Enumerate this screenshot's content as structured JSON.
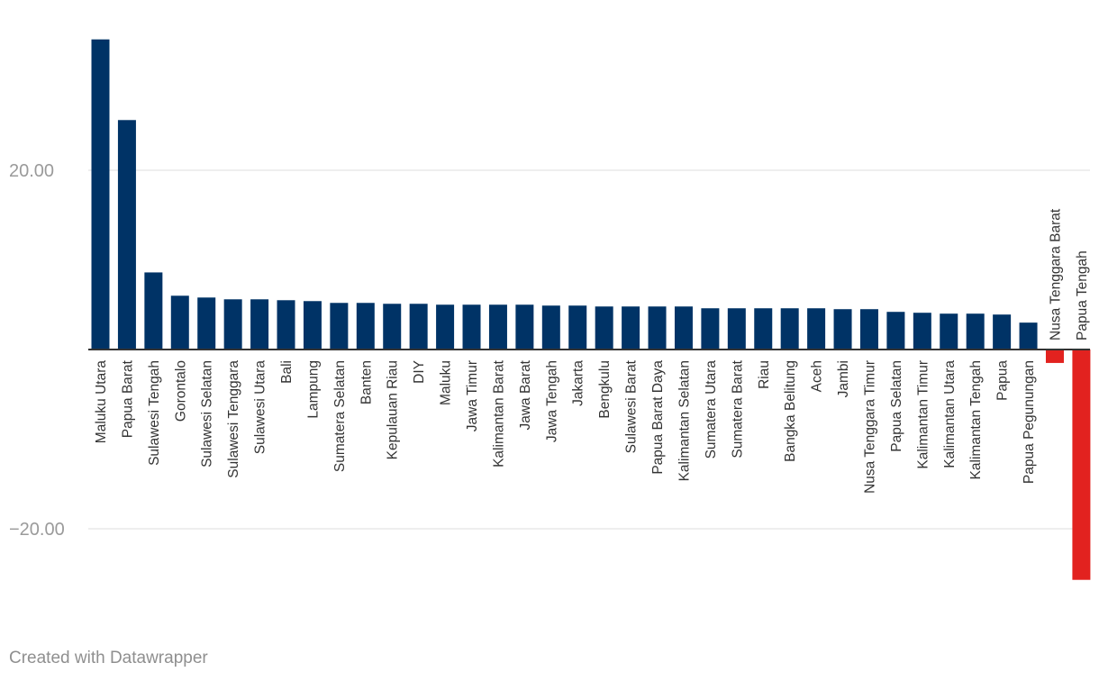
{
  "credit": "Created with Datawrapper",
  "colors": {
    "positive": "#003366",
    "negative": "#e2221f",
    "grid": "#e4e4e4",
    "axis": "#333333",
    "tick_text": "#9a9a9a",
    "label_text": "#333333"
  },
  "chart_data": {
    "type": "bar",
    "title": "",
    "xlabel": "",
    "ylabel": "",
    "ylim": [
      -30,
      35
    ],
    "yticks": [
      {
        "value": 20,
        "label": "20.00"
      },
      {
        "value": -20,
        "label": "−20.00"
      }
    ],
    "grid": true,
    "categories": [
      "Maluku Utara",
      "Papua Barat",
      "Sulawesi Tengah",
      "Gorontalo",
      "Sulawesi Selatan",
      "Sulawesi Tenggara",
      "Sulawesi Utara",
      "Bali",
      "Lampung",
      "Sumatera Selatan",
      "Banten",
      "Kepulauan Riau",
      "DIY",
      "Maluku",
      "Jawa Timur",
      "Kalimantan Barat",
      "Jawa Barat",
      "Jawa Tengah",
      "Jakarta",
      "Bengkulu",
      "Sulawesi Barat",
      "Papua Barat Daya",
      "Kalimantan Selatan",
      "Sumatera Utara",
      "Sumatera Barat",
      "Riau",
      "Bangka Belitung",
      "Aceh",
      "Jambi",
      "Nusa Tenggara Timur",
      "Papua Selatan",
      "Kalimantan Timur",
      "Kalimantan Utara",
      "Kalimantan Tengah",
      "Papua",
      "Papua Pegunungan",
      "Nusa Tenggara Barat",
      "Papua Tengah"
    ],
    "values": [
      34.6,
      25.6,
      8.6,
      6.0,
      5.8,
      5.6,
      5.6,
      5.5,
      5.4,
      5.2,
      5.2,
      5.1,
      5.1,
      5.0,
      5.0,
      5.0,
      5.0,
      4.9,
      4.9,
      4.8,
      4.8,
      4.8,
      4.8,
      4.6,
      4.6,
      4.6,
      4.6,
      4.6,
      4.5,
      4.5,
      4.2,
      4.1,
      4.0,
      4.0,
      3.9,
      3.0,
      -1.5,
      -25.7
    ]
  }
}
